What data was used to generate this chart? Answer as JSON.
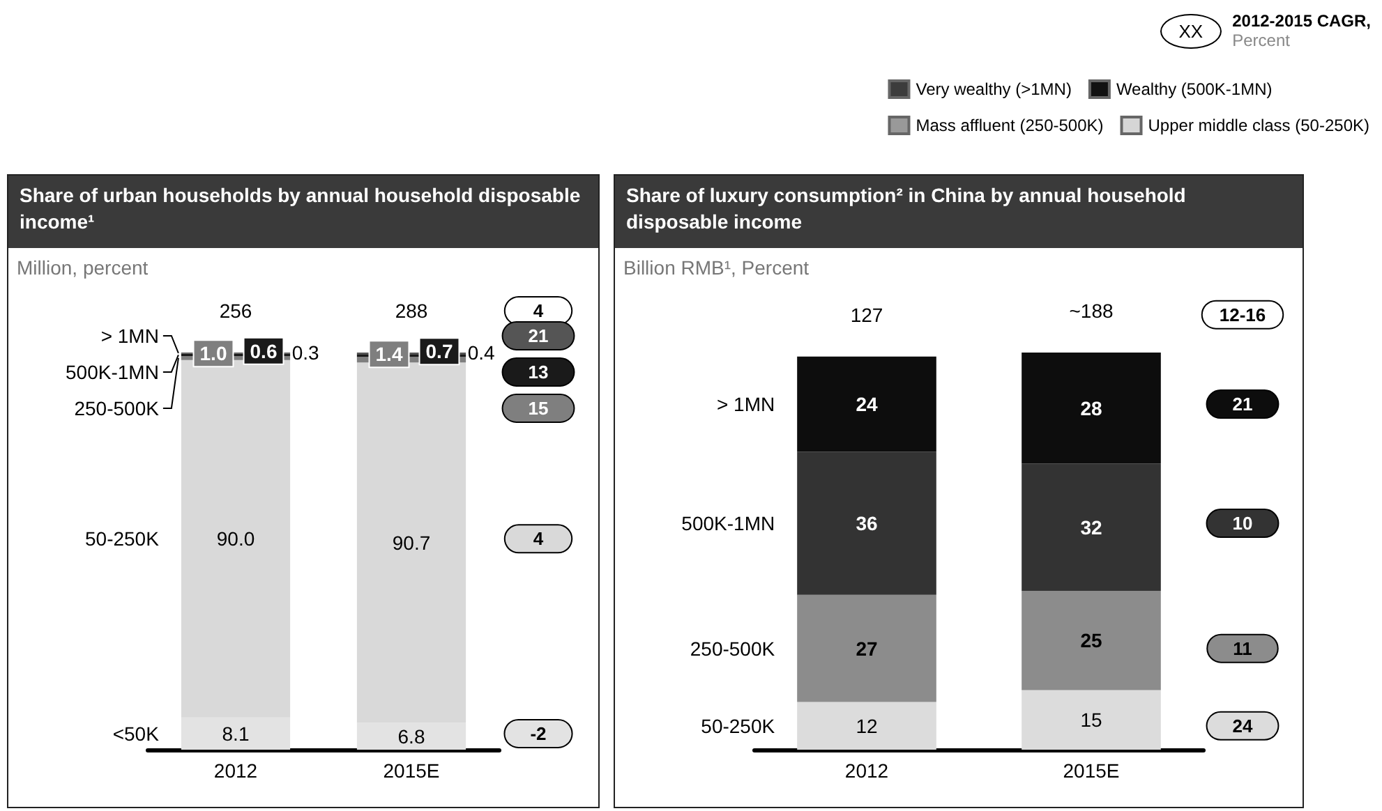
{
  "chart_data": [
    {
      "type": "bar",
      "stacked": true,
      "title": "Share of urban households by annual household disposable income¹",
      "subtitle": "Million, percent",
      "categories": [
        "2012",
        "2015E"
      ],
      "series": [
        {
          "name": "<50K",
          "color": "#e3e3e3",
          "values": [
            8.1,
            6.8
          ],
          "value_labels": [
            "8.1",
            "6.8"
          ]
        },
        {
          "name": "50-250K",
          "color": "#d9d9d9",
          "values": [
            90.0,
            90.7
          ],
          "value_labels": [
            "90.0",
            "90.7"
          ]
        },
        {
          "name": "250-500K",
          "color": "#7f7f7f",
          "values": [
            1.0,
            1.4
          ],
          "value_labels": [
            "1.0",
            "1.4"
          ]
        },
        {
          "name": "500K-1MN",
          "color": "#1a1a1a",
          "values": [
            0.6,
            0.7
          ],
          "value_labels": [
            "0.6",
            "0.7"
          ]
        },
        {
          "name": "> 1MN",
          "color": "#555555",
          "values": [
            0.3,
            0.4
          ],
          "value_labels": [
            "0.3",
            "0.4"
          ]
        }
      ],
      "annotations": [
        {
          "text": "256",
          "x": "2012",
          "y": 100
        },
        {
          "text": "288",
          "x": "2015E",
          "y": 100
        },
        "4",
        "21",
        "13",
        "15",
        "4",
        "-2"
      ],
      "tick_labels": "x"
    },
    {
      "type": "bar",
      "stacked": true,
      "title": "Share of luxury consumption² in China by annual household disposable income",
      "subtitle": "Billion RMB¹, Percent",
      "categories": [
        "2012",
        "2015E"
      ],
      "series": [
        {
          "name": "50-250K",
          "color": "#dcdcdc",
          "values": [
            12,
            15
          ]
        },
        {
          "name": "250-500K",
          "color": "#8c8c8c",
          "values": [
            27,
            25
          ]
        },
        {
          "name": "500K-1MN",
          "color": "#333333",
          "values": [
            36,
            32
          ]
        },
        {
          "name": "> 1MN",
          "color": "#0d0d0d",
          "values": [
            24,
            28
          ]
        }
      ],
      "data_labels": true,
      "annotations": [
        {
          "text": "127",
          "x": "2012",
          "y": 99
        },
        {
          "text": "~188",
          "x": "2015E",
          "y": 100
        },
        "12-16",
        "21",
        "10",
        "11",
        "24"
      ],
      "tick_labels": "x"
    },
    {
      "type": "other",
      "annotations": [
        "XX",
        "2012-2015 CAGR,",
        "Percent"
      ],
      "legend": "top right",
      "series": [
        {
          "name": "Very wealthy (>1MN)",
          "color": "#3c3c3c"
        },
        {
          "name": "Wealthy (500K-1MN)",
          "color": "#111111"
        },
        {
          "name": "Mass affluent (250-500K)",
          "color": "#999999"
        },
        {
          "name": "Upper middle class (50-250K)",
          "color": "#d6d6d6"
        }
      ]
    }
  ]
}
